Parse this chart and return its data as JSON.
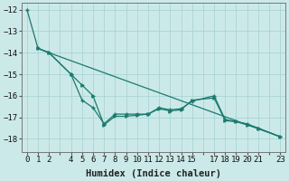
{
  "title": "",
  "xlabel": "Humidex (Indice chaleur)",
  "ylabel": "",
  "bg_color": "#cce9e9",
  "grid_color": "#aad4d4",
  "line_color": "#1a7a6e",
  "xlim": [
    -0.5,
    23.5
  ],
  "ylim": [
    -18.6,
    -11.7
  ],
  "yticks": [
    -18,
    -17,
    -16,
    -15,
    -14,
    -13,
    -12
  ],
  "xticks": [
    0,
    1,
    2,
    3,
    4,
    5,
    6,
    7,
    8,
    9,
    10,
    11,
    12,
    13,
    14,
    15,
    16,
    17,
    18,
    19,
    20,
    21,
    22,
    23
  ],
  "xtick_labels": [
    "0",
    "1",
    "2",
    "",
    "4",
    "5",
    "6",
    "7",
    "8",
    "9",
    "10",
    "11",
    "12",
    "13",
    "14",
    "15",
    "",
    "17",
    "18",
    "19",
    "20",
    "21",
    "",
    "23"
  ],
  "line1_x": [
    0,
    1,
    2,
    4,
    5,
    6,
    7,
    8,
    9,
    10,
    11,
    12,
    13,
    14,
    15,
    17,
    18,
    19,
    20,
    21,
    23
  ],
  "line1_y": [
    -12.0,
    -13.8,
    -14.0,
    -15.0,
    -16.2,
    -16.55,
    -17.3,
    -16.85,
    -16.85,
    -16.85,
    -16.85,
    -16.55,
    -16.65,
    -16.6,
    -16.25,
    -16.0,
    -17.1,
    -17.2,
    -17.3,
    -17.5,
    -17.9
  ],
  "line2_x": [
    1,
    2,
    4,
    5,
    6,
    7,
    8,
    9,
    10,
    11,
    12,
    13,
    14,
    15,
    17,
    18,
    19,
    20,
    21,
    23
  ],
  "line2_y": [
    -13.8,
    -14.0,
    -15.0,
    -15.5,
    -16.0,
    -17.35,
    -16.95,
    -16.95,
    -16.9,
    -16.85,
    -16.6,
    -16.7,
    -16.65,
    -16.2,
    -16.1,
    -17.15,
    -17.2,
    -17.35,
    -17.5,
    -17.9
  ],
  "line3_x": [
    1,
    2,
    23
  ],
  "line3_y": [
    -13.8,
    -14.0,
    -17.9
  ],
  "tick_fontsize": 6.5,
  "xlabel_fontsize": 7.5
}
